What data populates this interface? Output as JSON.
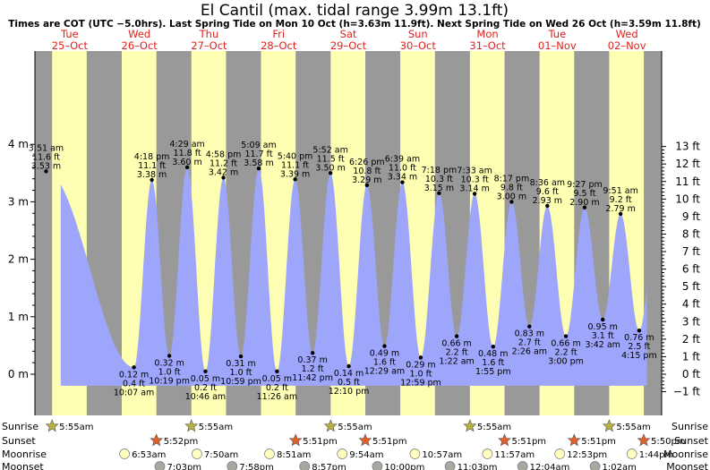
{
  "title": "El Cantil (max. tidal range 3.99m 13.1ft)",
  "subtitle": "Times are COT (UTC −5.0hrs). Last Spring Tide on Mon 10 Oct (h=3.63m 11.9ft). Next Spring Tide on Wed 26 Oct (h=3.59m 11.8ft)",
  "colors": {
    "night": "#999999",
    "day": "#ffffb3",
    "tide": "#9ea6fb",
    "sun": "#c8c8a0",
    "star_sunrise": "#b8b040",
    "star_sunset": "#e0602a",
    "moonrise": "#ffffc0",
    "moonset": "#a8a8a0"
  },
  "days": [
    {
      "name": "Tue",
      "date": "25–Oct"
    },
    {
      "name": "Wed",
      "date": "26–Oct"
    },
    {
      "name": "Thu",
      "date": "27–Oct"
    },
    {
      "name": "Fri",
      "date": "28–Oct"
    },
    {
      "name": "Sat",
      "date": "29–Oct"
    },
    {
      "name": "Sun",
      "date": "30–Oct"
    },
    {
      "name": "Mon",
      "date": "31–Oct"
    },
    {
      "name": "Tue",
      "date": "01–Nov"
    },
    {
      "name": "Wed",
      "date": "02–Nov"
    }
  ],
  "chart_data": {
    "type": "area",
    "title": "El Cantil (max. tidal range 3.99m 13.1ft)",
    "x_unit": "hours from 00:00 Tue 25-Oct (COT)",
    "y_left": {
      "unit": "m",
      "ticks": [
        "0 m",
        "1 m",
        "2 m",
        "3 m",
        "4 m"
      ],
      "values": [
        0,
        1,
        2,
        3,
        4
      ],
      "ylim": [
        -0.55,
        4.3
      ]
    },
    "y_right": {
      "unit": "ft",
      "ticks": [
        "−1 ft",
        "0 ft",
        "1 ft",
        "2 ft",
        "3 ft",
        "4 ft",
        "5 ft",
        "6 ft",
        "7 ft",
        "8 ft",
        "9 ft",
        "10 ft",
        "11 ft",
        "12 ft",
        "13 ft"
      ],
      "values": [
        -1,
        0,
        1,
        2,
        3,
        4,
        5,
        6,
        7,
        8,
        9,
        10,
        11,
        12,
        13
      ]
    },
    "tides": [
      {
        "type": "high",
        "time": "3:51 am",
        "ft": "11.6 ft",
        "m": "3.53 m",
        "h": 3.85,
        "v": 3.53
      },
      {
        "type": "low",
        "time": "10:07 am",
        "ft": "0.4 ft",
        "m": "0.12 m",
        "h": 34.12,
        "v": 0.12
      },
      {
        "type": "high",
        "time": "4:18 pm",
        "ft": "11.1 ft",
        "m": "3.38 m",
        "h": 40.3,
        "v": 3.38
      },
      {
        "type": "low",
        "time": "10:19 pm",
        "ft": "1.0 ft",
        "m": "0.32 m",
        "h": 46.32,
        "v": 0.32
      },
      {
        "type": "high",
        "time": "4:29 am",
        "ft": "11.8 ft",
        "m": "3.60 m",
        "h": 52.48,
        "v": 3.6
      },
      {
        "type": "low",
        "time": "10:46 am",
        "ft": "0.2 ft",
        "m": "0.05 m",
        "h": 58.77,
        "v": 0.05
      },
      {
        "type": "high",
        "time": "4:58 pm",
        "ft": "11.2 ft",
        "m": "3.42 m",
        "h": 64.97,
        "v": 3.42
      },
      {
        "type": "low",
        "time": "10:59 pm",
        "ft": "1.0 ft",
        "m": "0.31 m",
        "h": 70.98,
        "v": 0.31
      },
      {
        "type": "high",
        "time": "5:09 am",
        "ft": "11.7 ft",
        "m": "3.58 m",
        "h": 77.15,
        "v": 3.58
      },
      {
        "type": "low",
        "time": "11:26 am",
        "ft": "0.2 ft",
        "m": "0.05 m",
        "h": 83.43,
        "v": 0.05
      },
      {
        "type": "high",
        "time": "5:40 pm",
        "ft": "11.1 ft",
        "m": "3.39 m",
        "h": 89.67,
        "v": 3.39
      },
      {
        "type": "low",
        "time": "11:42 pm",
        "ft": "1.2 ft",
        "m": "0.37 m",
        "h": 95.7,
        "v": 0.37
      },
      {
        "type": "high",
        "time": "5:52 am",
        "ft": "11.5 ft",
        "m": "3.50 m",
        "h": 101.87,
        "v": 3.5
      },
      {
        "type": "low",
        "time": "12:10 pm",
        "ft": "0.5 ft",
        "m": "0.14 m",
        "h": 108.17,
        "v": 0.14
      },
      {
        "type": "high",
        "time": "6:26 pm",
        "ft": "10.8 ft",
        "m": "3.29 m",
        "h": 114.43,
        "v": 3.29
      },
      {
        "type": "low",
        "time": "12:29 am",
        "ft": "1.6 ft",
        "m": "0.49 m",
        "h": 120.48,
        "v": 0.49
      },
      {
        "type": "high",
        "time": "6:39 am",
        "ft": "11.0 ft",
        "m": "3.34 m",
        "h": 126.65,
        "v": 3.34
      },
      {
        "type": "low",
        "time": "12:59 pm",
        "ft": "1.0 ft",
        "m": "0.29 m",
        "h": 132.98,
        "v": 0.29
      },
      {
        "type": "high",
        "time": "7:18 pm",
        "ft": "10.3 ft",
        "m": "3.15 m",
        "h": 139.3,
        "v": 3.15
      },
      {
        "type": "low",
        "time": "1:22 am",
        "ft": "2.2 ft",
        "m": "0.66 m",
        "h": 145.37,
        "v": 0.66
      },
      {
        "type": "high",
        "time": "7:33 am",
        "ft": "10.3 ft",
        "m": "3.14 m",
        "h": 151.55,
        "v": 3.14
      },
      {
        "type": "low",
        "time": "1:55 pm",
        "ft": "1.6 ft",
        "m": "0.48 m",
        "h": 157.92,
        "v": 0.48
      },
      {
        "type": "high",
        "time": "8:17 pm",
        "ft": "9.8 ft",
        "m": "3.00 m",
        "h": 164.28,
        "v": 3.0
      },
      {
        "type": "low",
        "time": "2:26 am",
        "ft": "2.7 ft",
        "m": "0.83 m",
        "h": 170.43,
        "v": 0.83
      },
      {
        "type": "high",
        "time": "8:36 am",
        "ft": "9.6 ft",
        "m": "2.93 m",
        "h": 176.6,
        "v": 2.93
      },
      {
        "type": "low",
        "time": "3:00 pm",
        "ft": "2.2 ft",
        "m": "0.66 m",
        "h": 183.0,
        "v": 0.66
      },
      {
        "type": "high",
        "time": "9:27 pm",
        "ft": "9.5 ft",
        "m": "2.90 m",
        "h": 189.45,
        "v": 2.9
      },
      {
        "type": "low",
        "time": "3:42 am",
        "ft": "3.1 ft",
        "m": "0.95 m",
        "h": 195.7,
        "v": 0.95
      },
      {
        "type": "high",
        "time": "9:51 am",
        "ft": "9.2 ft",
        "m": "2.79 m",
        "h": 201.85,
        "v": 2.79
      },
      {
        "type": "low",
        "time": "4:15 pm",
        "ft": "2.5 ft",
        "m": "0.76 m",
        "h": 208.25,
        "v": 0.76
      }
    ],
    "sun_moon": {
      "rows": [
        "Sunrise",
        "Sunset",
        "Moonrise",
        "Moonset"
      ],
      "sunrise": [
        {
          "time": "5:55am",
          "h": 5.92
        },
        {
          "time": "5:55am",
          "h": 53.92
        },
        {
          "time": "5:55am",
          "h": 101.92
        },
        {
          "time": "5:55am",
          "h": 149.92
        },
        {
          "time": "5:55am",
          "h": 197.92
        }
      ],
      "sunset": [
        {
          "time": "5:52pm",
          "h": 41.87
        },
        {
          "time": "5:51pm",
          "h": 89.85
        },
        {
          "time": "5:51pm",
          "h": 113.85
        },
        {
          "time": "5:51pm",
          "h": 161.85
        },
        {
          "time": "5:51pm",
          "h": 185.85
        },
        {
          "time": "5:50pm",
          "h": 209.83
        }
      ],
      "moonrise": [
        {
          "time": "6:53am",
          "h": 30.88
        },
        {
          "time": "7:50am",
          "h": 55.83
        },
        {
          "time": "8:51am",
          "h": 80.85
        },
        {
          "time": "9:54am",
          "h": 105.9
        },
        {
          "time": "10:57am",
          "h": 130.95
        },
        {
          "time": "11:57am",
          "h": 155.95
        },
        {
          "time": "12:53pm",
          "h": 180.88
        },
        {
          "time": "1:44pm",
          "h": 205.73
        }
      ],
      "moonset": [
        {
          "time": "7:03pm",
          "h": 43.05
        },
        {
          "time": "7:58pm",
          "h": 67.97
        },
        {
          "time": "8:57pm",
          "h": 92.95
        },
        {
          "time": "10:00pm",
          "h": 118.0
        },
        {
          "time": "11:03pm",
          "h": 143.05
        },
        {
          "time": "12:04am",
          "h": 168.07
        },
        {
          "time": "1:02am",
          "h": 193.03
        }
      ]
    },
    "daylight": {
      "sunrise_hour": 5.92,
      "sunset_hour": 17.86
    },
    "grid": false,
    "legend": "none"
  }
}
